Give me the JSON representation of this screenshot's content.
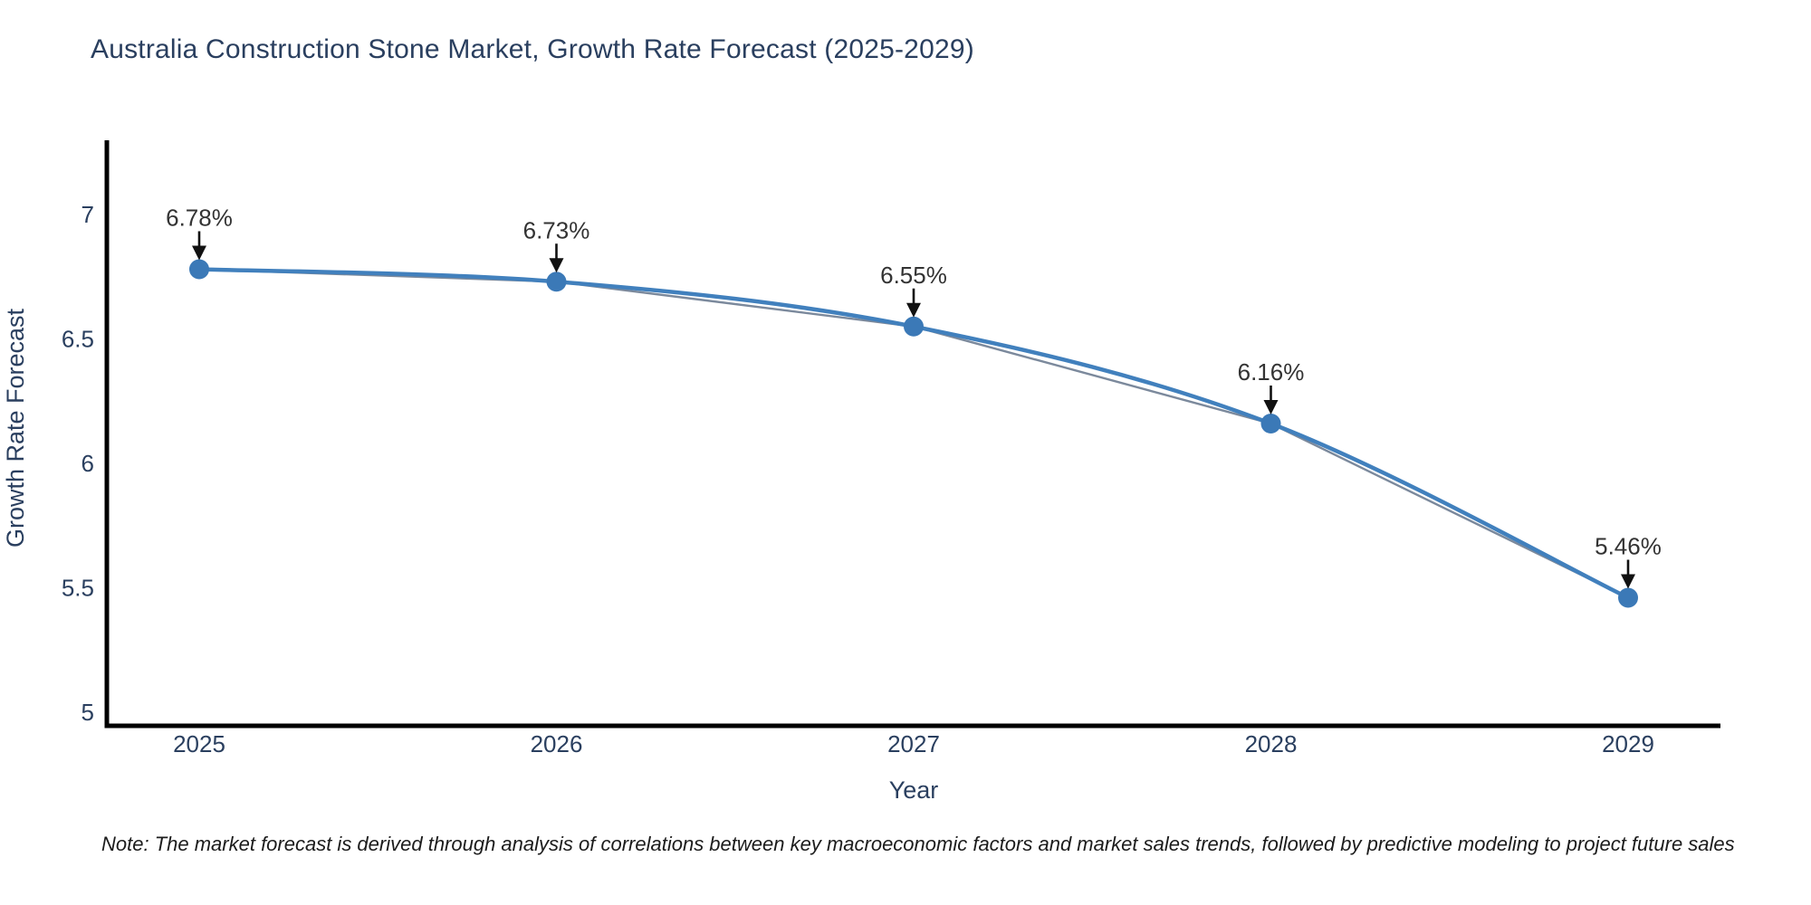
{
  "note": "Note: The market forecast is derived through analysis of correlations between key macroeconomic factors and market sales trends, followed by predictive modeling to project future sales",
  "colors": {
    "line": "#4180bd",
    "marker": "#3b79b7",
    "trend": "#64748b",
    "axis": "#000000",
    "axis_text": "#2a3f5f",
    "annotation_text": "#333333",
    "arrow": "#111111",
    "background": "#ffffff"
  },
  "chart_data": {
    "type": "line",
    "title": "Australia Construction Stone Market, Growth Rate Forecast (2025-2029)",
    "x": [
      2025,
      2026,
      2027,
      2028,
      2029
    ],
    "values": [
      6.78,
      6.73,
      6.55,
      6.16,
      5.46
    ],
    "point_labels": [
      "6.78%",
      "6.73%",
      "6.55%",
      "6.16%",
      "5.46%"
    ],
    "xlabel": "Year",
    "ylabel": "Growth Rate Forecast",
    "xticks": [
      2025,
      2026,
      2027,
      2028,
      2029
    ],
    "yticks": [
      5,
      5.5,
      6,
      6.5,
      7
    ],
    "ylim": [
      4.95,
      7.3
    ],
    "xlim": [
      2024.74,
      2029.26
    ],
    "grid": false,
    "legend": false,
    "line_shape": "spline",
    "annotation_style": "value label above point with downward black arrow"
  }
}
